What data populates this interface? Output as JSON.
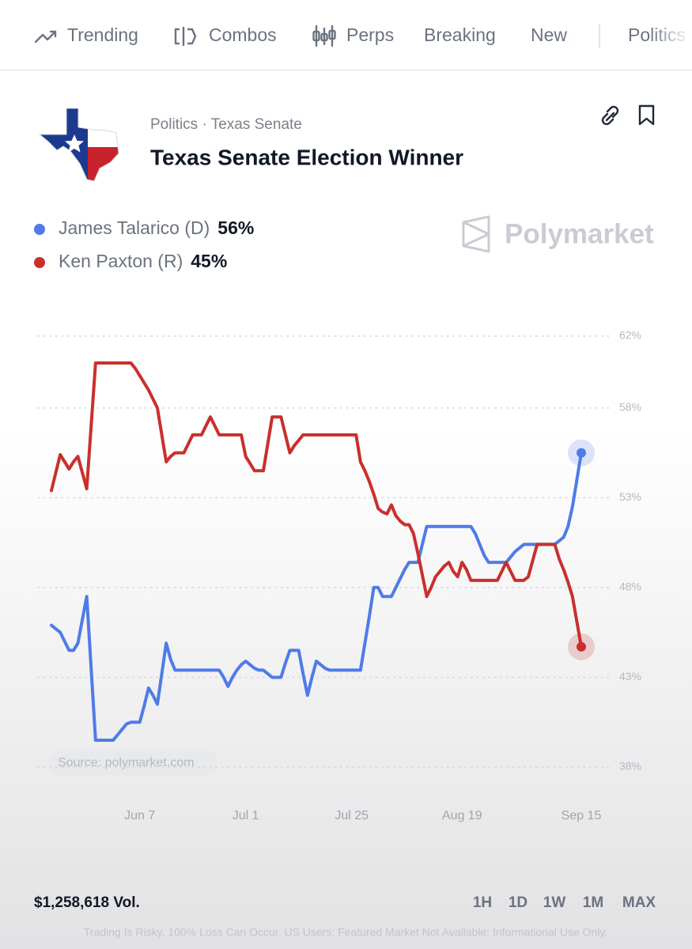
{
  "nav": {
    "tabs": [
      "Trending",
      "Combos",
      "Perps",
      "Breaking",
      "New",
      "Politics"
    ]
  },
  "market": {
    "breadcrumb": "Politics · Texas Senate",
    "title": "Texas Senate Election Winner"
  },
  "chart_data": {
    "type": "line",
    "watermark": "Polymarket",
    "source": "Source: polymarket.com",
    "categories": [
      null,
      null,
      null,
      null,
      null,
      null,
      null,
      null,
      null,
      null,
      null,
      null,
      null,
      null,
      null,
      null,
      null,
      null,
      null,
      null,
      "Jun 7",
      null,
      null,
      null,
      null,
      null,
      null,
      null,
      null,
      null,
      null,
      null,
      null,
      null,
      null,
      null,
      null,
      null,
      null,
      null,
      null,
      null,
      null,
      null,
      "Jul 1",
      null,
      null,
      null,
      null,
      null,
      null,
      null,
      null,
      null,
      null,
      null,
      null,
      null,
      null,
      null,
      null,
      null,
      null,
      null,
      null,
      null,
      null,
      null,
      "Jul 25",
      null,
      null,
      null,
      null,
      null,
      null,
      null,
      null,
      null,
      null,
      null,
      null,
      null,
      null,
      null,
      null,
      null,
      null,
      null,
      null,
      null,
      null,
      null,
      null,
      "Aug 19",
      null,
      null,
      null,
      null,
      null,
      null,
      null,
      null,
      null,
      null,
      null,
      null,
      null,
      null,
      null,
      null,
      null,
      null,
      null,
      null,
      null,
      null,
      null,
      null,
      null,
      null,
      "Sep 15"
    ],
    "series": [
      {
        "name": "James Talarico (D)",
        "legend_value": "56%",
        "color": "#4f7be8",
        "values": [
          45.9,
          45.7,
          45.5,
          45.0,
          44.5,
          44.5,
          44.9,
          46.2,
          47.5,
          43.5,
          39.5,
          39.5,
          39.5,
          39.5,
          39.5,
          39.8,
          40.1,
          40.4,
          40.5,
          40.5,
          40.5,
          41.4,
          42.4,
          42.0,
          41.5,
          43.2,
          44.9,
          44.0,
          43.4,
          43.4,
          43.4,
          43.4,
          43.4,
          43.4,
          43.4,
          43.4,
          43.4,
          43.4,
          43.4,
          43.0,
          42.5,
          43.0,
          43.4,
          43.7,
          43.9,
          43.7,
          43.5,
          43.4,
          43.4,
          43.2,
          43.0,
          43.0,
          43.0,
          43.8,
          44.5,
          44.5,
          44.5,
          43.2,
          42.0,
          43.0,
          43.9,
          43.7,
          43.5,
          43.4,
          43.4,
          43.4,
          43.4,
          43.4,
          43.4,
          43.4,
          43.4,
          44.9,
          46.4,
          48.0,
          48.0,
          47.5,
          47.5,
          47.5,
          48.0,
          48.5,
          49.0,
          49.4,
          49.4,
          49.4,
          50.4,
          51.4,
          51.4,
          51.4,
          51.4,
          51.4,
          51.4,
          51.4,
          51.4,
          51.4,
          51.4,
          51.4,
          51.0,
          50.4,
          49.8,
          49.4,
          49.4,
          49.4,
          49.4,
          49.4,
          49.7,
          50.0,
          50.2,
          50.4,
          50.4,
          50.4,
          50.4,
          50.4,
          50.4,
          50.4,
          50.4,
          50.6,
          50.8,
          51.4,
          52.5,
          54.0,
          55.5
        ]
      },
      {
        "name": "Ken Paxton (R)",
        "legend_value": "45%",
        "color": "#c9302c",
        "values": [
          53.4,
          54.4,
          55.4,
          55.0,
          54.6,
          55.0,
          55.3,
          54.4,
          53.5,
          57.0,
          60.5,
          60.5,
          60.5,
          60.5,
          60.5,
          60.5,
          60.5,
          60.5,
          60.5,
          60.2,
          59.8,
          59.4,
          59.0,
          58.5,
          58.0,
          56.5,
          55.0,
          55.3,
          55.5,
          55.5,
          55.5,
          56.0,
          56.5,
          56.5,
          56.5,
          57.0,
          57.5,
          57.0,
          56.5,
          56.5,
          56.5,
          56.5,
          56.5,
          56.5,
          55.3,
          54.9,
          54.5,
          54.5,
          54.5,
          56.0,
          57.5,
          57.5,
          57.5,
          56.5,
          55.5,
          55.9,
          56.2,
          56.5,
          56.5,
          56.5,
          56.5,
          56.5,
          56.5,
          56.5,
          56.5,
          56.5,
          56.5,
          56.5,
          56.5,
          56.5,
          55.0,
          54.5,
          53.9,
          53.2,
          52.4,
          52.2,
          52.1,
          52.6,
          52.0,
          51.7,
          51.5,
          51.5,
          51.0,
          49.9,
          48.7,
          47.5,
          48.0,
          48.6,
          48.9,
          49.2,
          49.4,
          48.9,
          48.6,
          49.4,
          49.0,
          48.4,
          48.4,
          48.4,
          48.4,
          48.4,
          48.4,
          48.4,
          48.9,
          49.4,
          48.9,
          48.4,
          48.4,
          48.4,
          48.6,
          49.5,
          50.4,
          50.4,
          50.4,
          50.4,
          50.4,
          49.6,
          49.0,
          48.3,
          47.5,
          46.1,
          44.7
        ]
      }
    ],
    "ylim": [
      38,
      62
    ],
    "yticks": [
      {
        "value": 38,
        "label": "38%"
      },
      {
        "value": 43,
        "label": "43%"
      },
      {
        "value": 48,
        "label": "48%"
      },
      {
        "value": 53,
        "label": "53%"
      },
      {
        "value": 58,
        "label": "58%"
      },
      {
        "value": 62,
        "label": "62%"
      }
    ],
    "grid": true
  },
  "footer": {
    "volume": "$1,258,618 Vol.",
    "ranges": [
      "1H",
      "1D",
      "1W",
      "1M",
      "MAX"
    ],
    "disclaimer": "Trading Is Risky. 100% Loss Can Occur. US Users: Featured Market Not Available; Informational Use Only."
  }
}
